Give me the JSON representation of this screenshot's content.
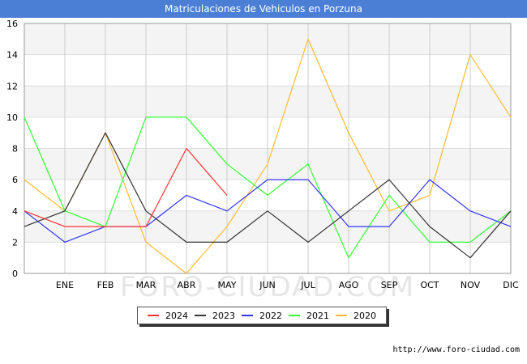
{
  "title": "Matriculaciones de Vehiculos en Porzuna",
  "watermark": "FORO-CIUDAD.COM",
  "source_url": "http://www.foro-ciudad.com",
  "chart_data": {
    "type": "line",
    "title": "Matriculaciones de Vehiculos en Porzuna",
    "categories": [
      "",
      "ENE",
      "FEB",
      "MAR",
      "ABR",
      "MAY",
      "JUN",
      "JUL",
      "AGO",
      "SEP",
      "OCT",
      "NOV",
      "DIC"
    ],
    "ylim": [
      0,
      16
    ],
    "yticks": [
      0,
      2,
      4,
      6,
      8,
      10,
      12,
      14,
      16
    ],
    "xlabel": "",
    "ylabel": "",
    "grid": true,
    "legend": "bottom-center",
    "series": [
      {
        "name": "2024",
        "color": "#ff3333",
        "values": [
          4,
          3,
          3,
          3,
          8,
          5,
          null,
          null,
          null,
          null,
          null,
          null,
          null
        ]
      },
      {
        "name": "2023",
        "color": "#333333",
        "values": [
          3,
          4,
          9,
          4,
          2,
          2,
          4,
          2,
          4,
          6,
          3,
          1,
          4
        ]
      },
      {
        "name": "2022",
        "color": "#3333ff",
        "values": [
          4,
          2,
          3,
          3,
          5,
          4,
          6,
          6,
          3,
          3,
          6,
          4,
          3
        ]
      },
      {
        "name": "2021",
        "color": "#33ff33",
        "values": [
          10,
          4,
          3,
          10,
          10,
          7,
          5,
          7,
          1,
          5,
          2,
          2,
          4
        ]
      },
      {
        "name": "2020",
        "color": "#ffbb33",
        "values": [
          6,
          4,
          9,
          2,
          0,
          3,
          7,
          15,
          9,
          4,
          5,
          14,
          10
        ]
      }
    ]
  }
}
